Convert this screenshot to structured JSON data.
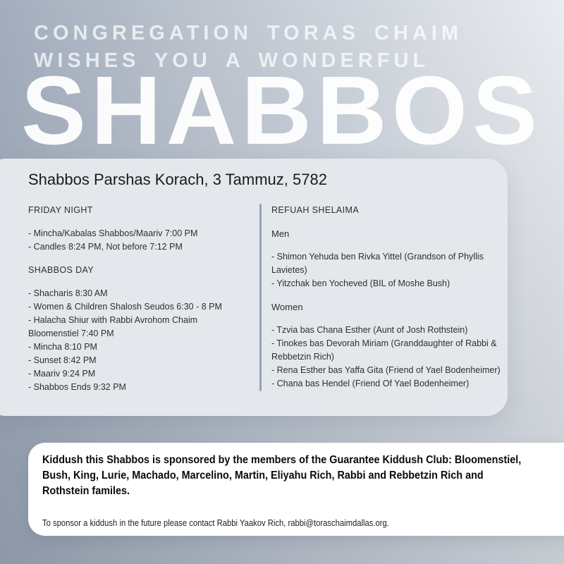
{
  "masthead": {
    "line1": "CONGREGATION TORAS CHAIM",
    "line2": "WISHES YOU A WONDERFUL",
    "title": "SHABBOS"
  },
  "schedule_card": {
    "title": "Shabbos Parshas Korach, 3 Tammuz, 5782",
    "left_column": {
      "sections": [
        {
          "header": "FRIDAY NIGHT",
          "items": [
            "- Mincha/Kabalas Shabbos/Maariv 7:00 PM",
            "- Candles 8:24 PM, Not before 7:12 PM"
          ]
        },
        {
          "header": "SHABBOS DAY",
          "items": [
            "- Shacharis 8:30 AM",
            "- Women & Children Shalosh Seudos 6:30 - 8 PM",
            "- Halacha Shiur with Rabbi Avrohom Chaim Bloomenstiel 7:40 PM",
            "- Mincha 8:10 PM",
            "- Sunset 8:42 PM",
            "- Maariv 9:24 PM",
            "- Shabbos Ends 9:32 PM"
          ]
        }
      ]
    },
    "right_column": {
      "header": "REFUAH SHELAIMA",
      "groups": [
        {
          "header": "Men",
          "items": [
            "- Shimon Yehuda ben Rivka Yittel (Grandson of Phyllis Lavietes)",
            "- Yitzchak ben Yocheved (BIL of Moshe Bush)"
          ]
        },
        {
          "header": "Women",
          "items": [
            "- Tzvia bas Chana Esther (Aunt of Josh Rothstein)",
            "- Tinokes bas Devorah Miriam (Granddaughter of Rabbi & Rebbetzin Rich)",
            "- Rena Esther bas Yaffa Gita (Friend of Yael Bodenheimer)",
            "- Chana bas Hendel (Friend Of Yael Bodenheimer)"
          ]
        }
      ]
    }
  },
  "kiddush_card": {
    "sponsor_text": "Kiddush this Shabbos is sponsored by the members of the Guarantee Kiddush Club: Bloomenstiel, Bush, King, Lurie, Machado, Marcelino, Martin, Eliyahu Rich, Rabbi and Rebbetzin Rich and Rothstein familes.",
    "contact_text": "To sponsor a kiddush in the future please contact Rabbi Yaakov Rich, rabbi@toraschaimdallas.org."
  },
  "colors": {
    "background_dark": "#96a1b2",
    "background_light": "#e9ecf0",
    "schedule_card_background": "#e4e8ec",
    "kiddush_card_background": "#ffffff",
    "divider": "#93a6b9",
    "headline_text": "#ffffff",
    "body_text": "#2e2e2e"
  }
}
